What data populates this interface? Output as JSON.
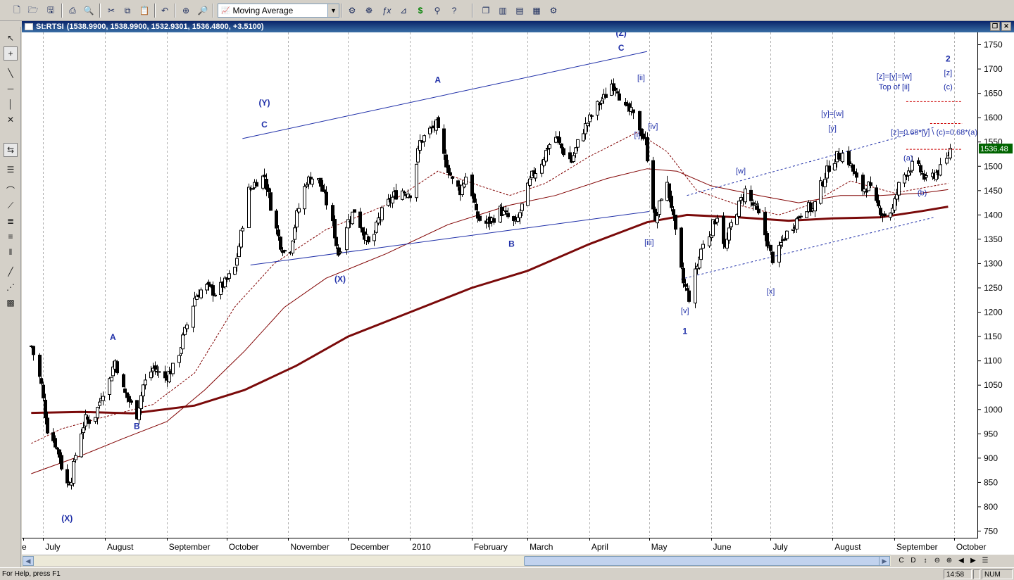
{
  "toolbar": {
    "indicator_select": "Moving Average",
    "buttons": [
      "new-file",
      "open-folder",
      "save",
      "print",
      "print-preview",
      "cut",
      "copy",
      "paste",
      "undo",
      "crosshair",
      "zoom",
      "dollar",
      "binoculars",
      "help",
      "window-cascade",
      "window-tile-vertical",
      "window-tile-horizontal",
      "window-arrange",
      "settings"
    ]
  },
  "chart_window": {
    "title": "St:RTSI",
    "ohlc": "(1538.9900, 1538.9900, 1532.9301, 1536.4800, +3.5100)"
  },
  "chart_data": {
    "type": "candlestick",
    "symbol": "St:RTSI",
    "last_price": "1536.48",
    "y_axis": {
      "ticks": [
        "750",
        "800",
        "850",
        "900",
        "950",
        "1000",
        "1050",
        "1100",
        "1150",
        "1200",
        "1250",
        "1300",
        "1350",
        "1400",
        "1450",
        "1500",
        "1550",
        "1600",
        "1650",
        "1700",
        "1750"
      ],
      "range": [
        725,
        1770
      ]
    },
    "x_axis": {
      "labels": [
        "e",
        "July",
        "August",
        "September",
        "October",
        "November",
        "December",
        "2010",
        "February",
        "March",
        "April",
        "May",
        "June",
        "July",
        "August",
        "September",
        "October"
      ]
    },
    "wave_labels": [
      {
        "text": "(X)",
        "date": "2009-07-13",
        "price": 770
      },
      {
        "text": "A",
        "date": "2009-08-05",
        "price": 1143
      },
      {
        "text": "B",
        "date": "2009-08-17",
        "price": 960
      },
      {
        "text": "C",
        "date": "2009-10-20",
        "price": 1580
      },
      {
        "text": "(Y)",
        "date": "2009-10-20",
        "price": 1625
      },
      {
        "text": "(X)",
        "date": "2009-11-27",
        "price": 1262
      },
      {
        "text": "A",
        "date": "2010-01-15",
        "price": 1672
      },
      {
        "text": "B",
        "date": "2010-02-21",
        "price": 1335
      },
      {
        "text": "C",
        "date": "2010-04-17",
        "price": 1738
      },
      {
        "text": "(Z)",
        "date": "2010-04-17",
        "price": 1768
      },
      {
        "text": "[ii]",
        "date": "2010-04-27",
        "price": 1677
      },
      {
        "text": "[i]",
        "date": "2010-04-25",
        "price": 1560
      },
      {
        "text": "[iv]",
        "date": "2010-05-03",
        "price": 1577
      },
      {
        "text": "[iii]",
        "date": "2010-05-01",
        "price": 1338
      },
      {
        "text": "[v]",
        "date": "2010-05-19",
        "price": 1198
      },
      {
        "text": "1",
        "date": "2010-05-19",
        "price": 1155
      },
      {
        "text": "[w]",
        "date": "2010-06-16",
        "price": 1485
      },
      {
        "text": "[x]",
        "date": "2010-07-01",
        "price": 1238
      },
      {
        "text": "[y]=[w]",
        "date": "2010-08-01",
        "price": 1603
      },
      {
        "text": "[y]",
        "date": "2010-08-01",
        "price": 1573
      },
      {
        "text": "(a)",
        "date": "2010-09-08",
        "price": 1512
      },
      {
        "text": "(b)",
        "date": "2010-09-15",
        "price": 1440
      },
      {
        "text": "[z]=0.68*[y] \\ (c)=0.68*(a)",
        "date": "2010-09-21",
        "price": 1565
      },
      {
        "text": "[z]=[y]=[w]",
        "date": "2010-09-01",
        "price": 1680
      },
      {
        "text": "Top of [ii]",
        "date": "2010-09-01",
        "price": 1658
      },
      {
        "text": "(c)",
        "date": "2010-09-28",
        "price": 1658
      },
      {
        "text": "[z]",
        "date": "2010-09-28",
        "price": 1687
      },
      {
        "text": "2",
        "date": "2010-09-28",
        "price": 1715
      }
    ],
    "moving_averages": [
      {
        "style": "thin-dashed",
        "color": "#800000",
        "points": [
          [
            "2009-06-25",
            930
          ],
          [
            "2009-07-10",
            960
          ],
          [
            "2009-08-01",
            985
          ],
          [
            "2009-08-25",
            1010
          ],
          [
            "2009-09-15",
            1075
          ],
          [
            "2009-10-05",
            1210
          ],
          [
            "2009-10-25",
            1300
          ],
          [
            "2009-11-20",
            1370
          ],
          [
            "2009-12-20",
            1420
          ],
          [
            "2010-01-15",
            1490
          ],
          [
            "2010-02-05",
            1460
          ],
          [
            "2010-02-20",
            1440
          ],
          [
            "2010-03-10",
            1465
          ],
          [
            "2010-04-01",
            1520
          ],
          [
            "2010-04-25",
            1570
          ],
          [
            "2010-05-10",
            1530
          ],
          [
            "2010-05-25",
            1450
          ],
          [
            "2010-06-15",
            1420
          ],
          [
            "2010-07-05",
            1400
          ],
          [
            "2010-07-20",
            1420
          ],
          [
            "2010-08-10",
            1470
          ],
          [
            "2010-09-01",
            1445
          ],
          [
            "2010-09-28",
            1465
          ]
        ]
      },
      {
        "style": "thin-solid",
        "color": "#800000",
        "points": [
          [
            "2009-06-25",
            868
          ],
          [
            "2009-07-20",
            905
          ],
          [
            "2009-08-10",
            940
          ],
          [
            "2009-09-01",
            975
          ],
          [
            "2009-09-20",
            1040
          ],
          [
            "2009-10-10",
            1120
          ],
          [
            "2009-10-30",
            1210
          ],
          [
            "2009-11-20",
            1270
          ],
          [
            "2009-12-20",
            1320
          ],
          [
            "2010-01-20",
            1380
          ],
          [
            "2010-02-20",
            1420
          ],
          [
            "2010-03-15",
            1440
          ],
          [
            "2010-04-10",
            1475
          ],
          [
            "2010-04-30",
            1495
          ],
          [
            "2010-05-15",
            1490
          ],
          [
            "2010-06-01",
            1460
          ],
          [
            "2010-06-25",
            1440
          ],
          [
            "2010-07-15",
            1425
          ],
          [
            "2010-08-05",
            1440
          ],
          [
            "2010-08-25",
            1440
          ],
          [
            "2010-09-15",
            1445
          ],
          [
            "2010-09-28",
            1452
          ]
        ]
      },
      {
        "style": "thick-solid",
        "color": "#7a0a0a",
        "points": [
          [
            "2009-06-25",
            993
          ],
          [
            "2009-07-20",
            995
          ],
          [
            "2009-08-15",
            992
          ],
          [
            "2009-09-15",
            1008
          ],
          [
            "2009-10-10",
            1040
          ],
          [
            "2009-11-05",
            1090
          ],
          [
            "2009-12-01",
            1150
          ],
          [
            "2010-01-01",
            1200
          ],
          [
            "2010-02-01",
            1250
          ],
          [
            "2010-03-01",
            1285
          ],
          [
            "2010-04-01",
            1340
          ],
          [
            "2010-04-30",
            1385
          ],
          [
            "2010-05-20",
            1400
          ],
          [
            "2010-06-15",
            1395
          ],
          [
            "2010-07-10",
            1388
          ],
          [
            "2010-08-01",
            1393
          ],
          [
            "2010-08-25",
            1395
          ],
          [
            "2010-09-15",
            1408
          ],
          [
            "2010-09-28",
            1417
          ]
        ]
      }
    ],
    "trendlines": [
      {
        "style": "solid",
        "color": "#1f2fa8",
        "from": [
          "2009-10-09",
          1557
        ],
        "to": [
          "2010-04-30",
          1736
        ]
      },
      {
        "style": "solid",
        "color": "#1f2fa8",
        "from": [
          "2009-10-13",
          1297
        ],
        "to": [
          "2010-05-01",
          1407
        ]
      },
      {
        "style": "dashed",
        "color": "#1f2fa8",
        "from": [
          "2010-05-17",
          1268
        ],
        "to": [
          "2010-09-21",
          1395
        ]
      },
      {
        "style": "dashed",
        "color": "#1f2fa8",
        "from": [
          "2010-05-20",
          1440
        ],
        "to": [
          "2010-09-21",
          1580
        ]
      }
    ],
    "horizontal_levels": [
      {
        "price": 1633,
        "from": "2010-09-07",
        "to": "2010-10-05"
      },
      {
        "price": 1588,
        "from": "2010-09-19",
        "to": "2010-10-05"
      },
      {
        "price": 1535,
        "from": "2010-09-07",
        "to": "2010-10-05"
      }
    ],
    "price_path": [
      [
        "2009-06-25",
        1130
      ],
      [
        "2009-06-30",
        1050
      ],
      [
        "2009-07-03",
        960
      ],
      [
        "2009-07-07",
        930
      ],
      [
        "2009-07-09",
        905
      ],
      [
        "2009-07-12",
        840
      ],
      [
        "2009-07-15",
        860
      ],
      [
        "2009-07-18",
        930
      ],
      [
        "2009-07-22",
        980
      ],
      [
        "2009-07-26",
        975
      ],
      [
        "2009-07-30",
        1030
      ],
      [
        "2009-08-03",
        1060
      ],
      [
        "2009-08-06",
        1100
      ],
      [
        "2009-08-10",
        1040
      ],
      [
        "2009-08-14",
        1010
      ],
      [
        "2009-08-17",
        990
      ],
      [
        "2009-08-20",
        1050
      ],
      [
        "2009-08-25",
        1085
      ],
      [
        "2009-08-31",
        1065
      ],
      [
        "2009-09-05",
        1090
      ],
      [
        "2009-09-10",
        1160
      ],
      [
        "2009-09-15",
        1230
      ],
      [
        "2009-09-20",
        1255
      ],
      [
        "2009-09-25",
        1240
      ],
      [
        "2009-09-30",
        1260
      ],
      [
        "2009-10-05",
        1290
      ],
      [
        "2009-10-08",
        1360
      ],
      [
        "2009-10-12",
        1450
      ],
      [
        "2009-10-16",
        1470
      ],
      [
        "2009-10-20",
        1480
      ],
      [
        "2009-10-24",
        1400
      ],
      [
        "2009-10-28",
        1340
      ],
      [
        "2009-11-01",
        1310
      ],
      [
        "2009-11-05",
        1400
      ],
      [
        "2009-11-10",
        1470
      ],
      [
        "2009-11-15",
        1480
      ],
      [
        "2009-11-18",
        1450
      ],
      [
        "2009-11-22",
        1400
      ],
      [
        "2009-11-26",
        1320
      ],
      [
        "2009-11-30",
        1380
      ],
      [
        "2009-12-04",
        1410
      ],
      [
        "2009-12-08",
        1370
      ],
      [
        "2009-12-12",
        1330
      ],
      [
        "2009-12-16",
        1390
      ],
      [
        "2009-12-20",
        1420
      ],
      [
        "2009-12-24",
        1440
      ],
      [
        "2009-12-28",
        1450
      ],
      [
        "2010-01-01",
        1445
      ],
      [
        "2010-01-06",
        1550
      ],
      [
        "2010-01-10",
        1570
      ],
      [
        "2010-01-14",
        1585
      ],
      [
        "2010-01-18",
        1520
      ],
      [
        "2010-01-22",
        1470
      ],
      [
        "2010-01-26",
        1450
      ],
      [
        "2010-01-30",
        1490
      ],
      [
        "2010-02-03",
        1400
      ],
      [
        "2010-02-07",
        1380
      ],
      [
        "2010-02-11",
        1390
      ],
      [
        "2010-02-15",
        1410
      ],
      [
        "2010-02-19",
        1395
      ],
      [
        "2010-02-23",
        1380
      ],
      [
        "2010-02-27",
        1430
      ],
      [
        "2010-03-03",
        1480
      ],
      [
        "2010-03-07",
        1500
      ],
      [
        "2010-03-11",
        1540
      ],
      [
        "2010-03-15",
        1560
      ],
      [
        "2010-03-19",
        1530
      ],
      [
        "2010-03-23",
        1510
      ],
      [
        "2010-03-27",
        1560
      ],
      [
        "2010-03-31",
        1590
      ],
      [
        "2010-04-04",
        1620
      ],
      [
        "2010-04-08",
        1640
      ],
      [
        "2010-04-12",
        1670
      ],
      [
        "2010-04-15",
        1660
      ],
      [
        "2010-04-18",
        1620
      ],
      [
        "2010-04-22",
        1610
      ],
      [
        "2010-04-26",
        1580
      ],
      [
        "2010-04-29",
        1550
      ],
      [
        "2010-05-02",
        1460
      ],
      [
        "2010-05-04",
        1380
      ],
      [
        "2010-05-06",
        1420
      ],
      [
        "2010-05-09",
        1480
      ],
      [
        "2010-05-12",
        1420
      ],
      [
        "2010-05-15",
        1330
      ],
      [
        "2010-05-18",
        1260
      ],
      [
        "2010-05-21",
        1230
      ],
      [
        "2010-05-24",
        1280
      ],
      [
        "2010-05-27",
        1330
      ],
      [
        "2010-05-31",
        1360
      ],
      [
        "2010-06-04",
        1400
      ],
      [
        "2010-06-08",
        1330
      ],
      [
        "2010-06-11",
        1380
      ],
      [
        "2010-06-15",
        1420
      ],
      [
        "2010-06-18",
        1450
      ],
      [
        "2010-06-22",
        1420
      ],
      [
        "2010-06-26",
        1390
      ],
      [
        "2010-06-30",
        1330
      ],
      [
        "2010-07-03",
        1300
      ],
      [
        "2010-07-06",
        1340
      ],
      [
        "2010-07-10",
        1370
      ],
      [
        "2010-07-14",
        1390
      ],
      [
        "2010-07-18",
        1420
      ],
      [
        "2010-07-22",
        1410
      ],
      [
        "2010-07-26",
        1460
      ],
      [
        "2010-07-30",
        1500
      ],
      [
        "2010-08-03",
        1520
      ],
      [
        "2010-08-06",
        1525
      ],
      [
        "2010-08-09",
        1510
      ],
      [
        "2010-08-12",
        1480
      ],
      [
        "2010-08-15",
        1450
      ],
      [
        "2010-08-19",
        1460
      ],
      [
        "2010-08-23",
        1420
      ],
      [
        "2010-08-27",
        1400
      ],
      [
        "2010-08-31",
        1410
      ],
      [
        "2010-09-03",
        1460
      ],
      [
        "2010-09-07",
        1490
      ],
      [
        "2010-09-11",
        1505
      ],
      [
        "2010-09-14",
        1490
      ],
      [
        "2010-09-17",
        1470
      ],
      [
        "2010-09-20",
        1480
      ],
      [
        "2010-09-23",
        1490
      ],
      [
        "2010-09-26",
        1500
      ],
      [
        "2010-09-29",
        1536
      ]
    ],
    "colors": {
      "candles": "#000000",
      "labels": "#1f2fa8",
      "levels": "#cc0000",
      "last_price_bg": "#006400"
    }
  },
  "statusbar": {
    "help_text": "For Help, press F1",
    "time": "14:58",
    "num": "NUM"
  },
  "nav_buttons": [
    "C",
    "D",
    "↕",
    "⊖",
    "⊕",
    "◀",
    "▶",
    "☰"
  ]
}
